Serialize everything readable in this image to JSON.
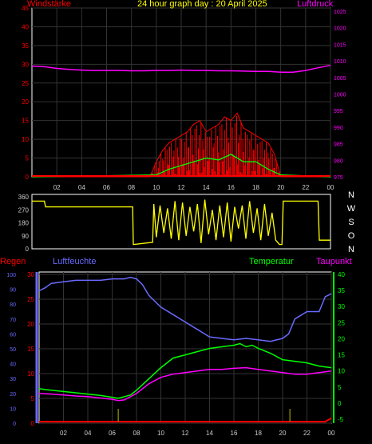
{
  "title": "24 hour graph day : 20 April 2025",
  "colors": {
    "wind": "#ff0000",
    "gust": "#ff0000",
    "wind_avg": "#00ff00",
    "pressure": "#ff00ff",
    "direction": "#ffff00",
    "rain": "#ff0000",
    "humidity": "#6a6aff",
    "temperature": "#00ff00",
    "dewpoint": "#ff00ff",
    "frame": "#ffffff",
    "grid": "#333333"
  },
  "x_ticks": [
    "02",
    "04",
    "06",
    "08",
    "10",
    "12",
    "14",
    "16",
    "18",
    "20",
    "22",
    "00"
  ],
  "chart_data": [
    {
      "type": "line",
      "panel": "wind-pressure",
      "title": "24 hour graph day : 20 April 2025",
      "left_axis": {
        "label": "Windstärke",
        "ticks": [
          "45",
          "40",
          "35",
          "30",
          "25",
          "20",
          "15",
          "10",
          "5",
          "0"
        ],
        "range": [
          0,
          45
        ]
      },
      "right_axis": {
        "label": "Luftdruck",
        "ticks": [
          "1025",
          "1020",
          "1015",
          "1010",
          "1005",
          "1000",
          "995",
          "990",
          "985",
          "980",
          "975"
        ],
        "range": [
          975,
          1025
        ]
      },
      "series": [
        {
          "name": "Windstärke",
          "axis": "left",
          "x": [
            0,
            9.5,
            10,
            10.5,
            11,
            11.5,
            12,
            12.5,
            13,
            13.5,
            14,
            14.5,
            15,
            15.5,
            16,
            16.5,
            17,
            17.5,
            18,
            18.5,
            19,
            19.5,
            20,
            24
          ],
          "y": [
            0,
            0,
            4,
            7,
            9,
            10,
            11,
            12,
            14,
            15,
            12,
            13,
            14,
            16,
            15,
            17,
            13,
            12,
            11,
            10,
            9,
            6,
            0,
            0
          ]
        },
        {
          "name": "",
          "axis": "left",
          "x": [
            0,
            10,
            11,
            12,
            13,
            14,
            15,
            16,
            17,
            18,
            19,
            20,
            24
          ],
          "y": [
            0,
            0.5,
            2,
            3,
            4,
            5,
            4.5,
            6,
            4,
            4,
            2,
            0.5,
            0
          ]
        },
        {
          "name": "Luftdruck",
          "axis": "right",
          "x": [
            0,
            1,
            2,
            3,
            4,
            5,
            6,
            7,
            8,
            9,
            10,
            11,
            12,
            13,
            14,
            15,
            16,
            17,
            18,
            19,
            20,
            21,
            22,
            23,
            24
          ],
          "y": [
            1007.8,
            1007.6,
            1007.1,
            1006.8,
            1006.6,
            1006.5,
            1006.5,
            1006.5,
            1006.4,
            1006.4,
            1006.5,
            1006.5,
            1006.6,
            1006.5,
            1006.5,
            1006.4,
            1006.4,
            1006.3,
            1006.2,
            1006.2,
            1006.0,
            1006.0,
            1006.5,
            1007.3,
            1008.0
          ]
        }
      ]
    },
    {
      "type": "line",
      "panel": "wind-direction",
      "left_axis": {
        "ticks": [
          "360",
          "270",
          "180",
          "90",
          "0"
        ],
        "range": [
          0,
          360
        ]
      },
      "right_labels": [
        "N",
        "W",
        "S",
        "O",
        "N"
      ],
      "series": [
        {
          "name": "",
          "x": [
            0,
            1,
            1.1,
            8.1,
            8.15,
            9.7,
            9.8,
            10,
            10.3,
            10.6,
            10.9,
            11.2,
            11.5,
            11.8,
            12.1,
            12.4,
            12.7,
            13,
            13.3,
            13.6,
            13.9,
            14.2,
            14.5,
            14.8,
            15.1,
            15.4,
            15.7,
            16,
            16.3,
            16.6,
            16.9,
            17.2,
            17.5,
            17.8,
            18.1,
            18.4,
            18.7,
            19,
            19.3,
            19.6,
            19.9,
            20.1,
            20.2,
            23,
            23.1,
            24
          ],
          "y": [
            330,
            330,
            290,
            290,
            30,
            45,
            310,
            80,
            300,
            110,
            280,
            70,
            330,
            60,
            320,
            90,
            290,
            120,
            310,
            40,
            340,
            100,
            270,
            60,
            300,
            80,
            320,
            50,
            290,
            140,
            300,
            70,
            330,
            110,
            280,
            60,
            310,
            90,
            250,
            60,
            30,
            30,
            330,
            330,
            60,
            60
          ]
        }
      ]
    },
    {
      "type": "line",
      "panel": "rain-humidity-temperature",
      "legend": [
        "Regen",
        "Luftfeuchte",
        "Temperatur",
        "Taupunkt"
      ],
      "axis_humidity": {
        "ticks": [
          "100",
          "90",
          "80",
          "70",
          "60",
          "50",
          "40",
          "30",
          "20",
          "10",
          "0"
        ],
        "range": [
          0,
          100
        ]
      },
      "axis_rain": {
        "ticks": [
          "30",
          "25",
          "20",
          "15",
          "10",
          "5",
          "0"
        ],
        "range": [
          0,
          30
        ]
      },
      "axis_temperature": {
        "ticks": [
          "40",
          "35",
          "30",
          "25",
          "20",
          "15",
          "10",
          "5",
          "0",
          "-5"
        ],
        "range": [
          -5,
          40
        ]
      },
      "series": [
        {
          "name": "Luftfeuchte",
          "axis": "humidity",
          "x": [
            0,
            0.5,
            1,
            2,
            3,
            4,
            5,
            6,
            7,
            7.5,
            8,
            8.5,
            9,
            10,
            11,
            12,
            13,
            14,
            15,
            16,
            17,
            18,
            19,
            20,
            20.5,
            21,
            22,
            23,
            23.5,
            24
          ],
          "y": [
            89,
            91,
            94,
            95,
            96,
            96,
            96,
            97,
            97,
            98,
            97,
            93,
            86,
            78,
            73,
            68,
            63,
            58,
            57,
            56,
            57,
            56,
            55,
            57,
            60,
            70,
            75,
            75,
            85,
            87
          ]
        },
        {
          "name": "Temperatur",
          "axis": "temperature",
          "x": [
            0,
            0.5,
            1,
            2,
            3,
            4,
            5,
            6,
            6.5,
            7,
            7.5,
            8,
            9,
            10,
            11,
            12,
            13,
            14,
            15,
            16,
            16.5,
            17,
            17.5,
            18,
            19,
            20,
            21,
            22,
            23,
            24
          ],
          "y": [
            4.5,
            4.2,
            4.0,
            3.6,
            3.2,
            2.8,
            2.4,
            1.8,
            1.5,
            2.0,
            2.5,
            4.0,
            7.5,
            11.0,
            14.0,
            15.0,
            16.0,
            17.0,
            17.5,
            18.0,
            18.5,
            17.5,
            18.0,
            17.0,
            15.5,
            13.5,
            13.0,
            12.5,
            11.5,
            11.0
          ]
        },
        {
          "name": "Taupunkt",
          "axis": "temperature",
          "x": [
            0,
            1,
            2,
            3,
            4,
            5,
            6,
            6.5,
            7,
            8,
            9,
            10,
            11,
            12,
            13,
            14,
            15,
            16,
            17,
            18,
            19,
            20,
            21,
            22,
            23,
            24
          ],
          "y": [
            3.0,
            2.8,
            2.5,
            2.2,
            2.0,
            1.6,
            1.2,
            0.8,
            1.0,
            3.0,
            6.0,
            8.0,
            9.0,
            9.5,
            10.0,
            10.5,
            10.5,
            10.8,
            11.0,
            10.5,
            10.0,
            9.5,
            9.0,
            9.0,
            9.5,
            10.0
          ]
        },
        {
          "name": "Regen",
          "axis": "rain",
          "x": [
            0,
            23.5,
            24
          ],
          "y": [
            0.3,
            0.3,
            1.0
          ]
        }
      ]
    }
  ]
}
